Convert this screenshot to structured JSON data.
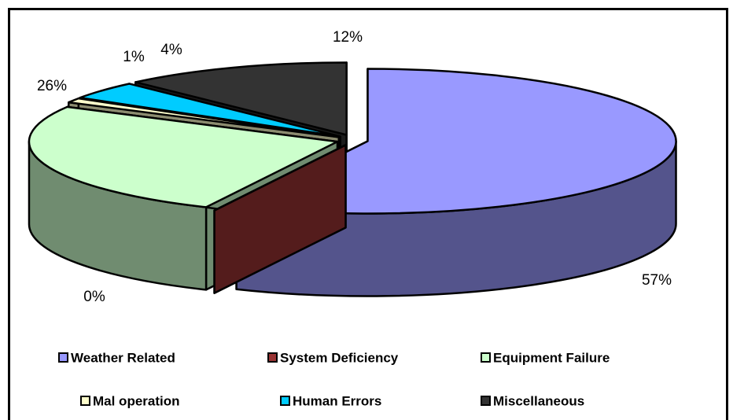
{
  "chart_data": {
    "type": "pie",
    "categories": [
      "Weather Related",
      "System Deficiency",
      "Equipment Failure",
      "Mal operation",
      "Human Errors",
      "Miscellaneous"
    ],
    "values": [
      57,
      0,
      26,
      1,
      4,
      12
    ],
    "value_labels": [
      "57%",
      "0%",
      "26%",
      "1%",
      "4%",
      "12%"
    ],
    "colors": [
      "#9999ff",
      "#993333",
      "#ccffcc",
      "#ffffcc",
      "#00ccff",
      "#333333"
    ],
    "legend": "bottom"
  }
}
